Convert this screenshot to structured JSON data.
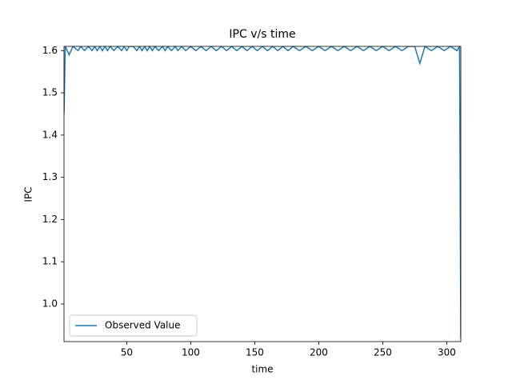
{
  "chart_data": {
    "type": "line",
    "title": "IPC v/s time",
    "xlabel": "time",
    "ylabel": "IPC",
    "x": [
      1,
      2,
      5,
      8,
      12,
      14,
      17,
      20,
      23,
      25,
      27,
      29,
      31,
      33,
      35,
      37,
      40,
      43,
      46,
      48,
      50,
      52,
      55,
      58,
      60,
      62,
      64,
      66,
      68,
      70,
      72,
      75,
      78,
      80,
      82,
      85,
      88,
      90,
      93,
      96,
      100,
      104,
      108,
      112,
      116,
      120,
      124,
      128,
      132,
      136,
      140,
      144,
      148,
      152,
      156,
      160,
      164,
      168,
      172,
      176,
      180,
      185,
      190,
      195,
      200,
      205,
      210,
      215,
      220,
      225,
      230,
      235,
      240,
      245,
      250,
      255,
      260,
      265,
      270,
      275,
      279,
      283,
      288,
      293,
      298,
      303,
      308,
      310,
      311
    ],
    "series": [
      {
        "name": "Observed Value",
        "color": "#1f77b4",
        "values": [
          1.45,
          1.61,
          1.59,
          1.61,
          1.6,
          1.61,
          1.6,
          1.61,
          1.6,
          1.61,
          1.6,
          1.61,
          1.6,
          1.61,
          1.6,
          1.61,
          1.6,
          1.61,
          1.6,
          1.61,
          1.6,
          1.61,
          1.61,
          1.6,
          1.61,
          1.6,
          1.61,
          1.6,
          1.61,
          1.6,
          1.61,
          1.6,
          1.61,
          1.6,
          1.61,
          1.6,
          1.61,
          1.6,
          1.61,
          1.6,
          1.61,
          1.6,
          1.61,
          1.6,
          1.61,
          1.6,
          1.61,
          1.6,
          1.61,
          1.6,
          1.61,
          1.6,
          1.61,
          1.6,
          1.61,
          1.6,
          1.61,
          1.6,
          1.61,
          1.6,
          1.61,
          1.6,
          1.61,
          1.6,
          1.61,
          1.6,
          1.61,
          1.6,
          1.61,
          1.6,
          1.61,
          1.6,
          1.61,
          1.6,
          1.61,
          1.6,
          1.61,
          1.6,
          1.61,
          1.61,
          1.57,
          1.61,
          1.6,
          1.61,
          1.6,
          1.61,
          1.6,
          1.61,
          0.92
        ]
      }
    ],
    "xlim": [
      1,
      311
    ],
    "xticks": [
      50,
      100,
      150,
      200,
      250,
      300
    ],
    "ylim": [
      0.911,
      1.61
    ],
    "yticks": [
      {
        "value": 1,
        "label": "1.0"
      },
      1.1,
      1.2,
      1.3,
      1.4,
      1.5,
      1.6
    ],
    "legend": "lower left"
  }
}
